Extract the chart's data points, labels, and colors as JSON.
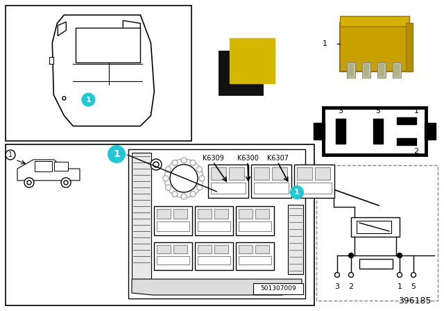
{
  "bg_color": "#ffffff",
  "cyan_color": "#1fc8d4",
  "yellow_color": "#d4b800",
  "black_color": "#111111",
  "gray_color": "#888888",
  "light_gray": "#cccccc",
  "mid_gray": "#aaaaaa",
  "dashed_gray": "#888888",
  "part_number": "396185",
  "relay_labels": [
    "K6309",
    "K6300",
    "K6307"
  ],
  "pin_labels_left": [
    "3",
    "2"
  ],
  "pin_labels_right": [
    "1",
    "5"
  ],
  "diagram_ref": "501307009",
  "item_number": "1"
}
